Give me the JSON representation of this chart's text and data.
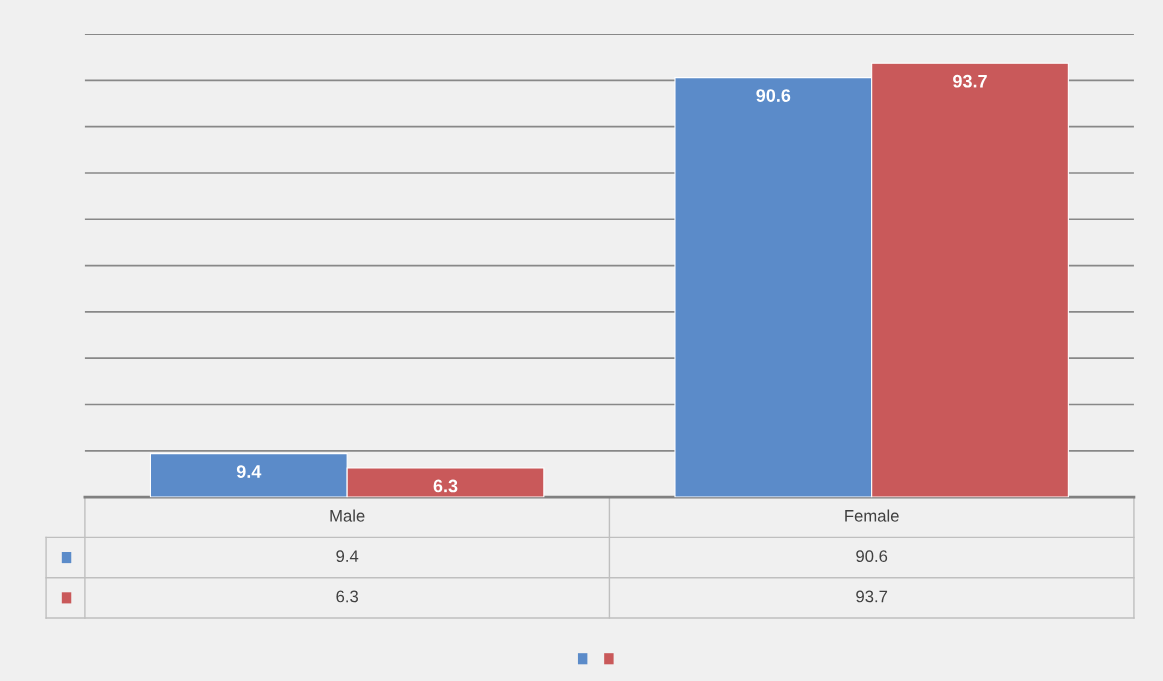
{
  "chart_data": {
    "type": "bar",
    "categories": [
      "Male",
      "Female"
    ],
    "series": [
      {
        "color": "#5b8bc9",
        "values": [
          9.4,
          90.6
        ],
        "value_labels": [
          "9.4",
          "90.6"
        ]
      },
      {
        "color": "#c9595a",
        "values": [
          6.3,
          93.7
        ],
        "value_labels": [
          "6.3",
          "93.7"
        ]
      }
    ],
    "ylim": [
      0,
      100
    ],
    "yticks": [
      {
        "value": 0,
        "label": null
      },
      {
        "value": 10,
        "label": null
      },
      {
        "value": 20,
        "label": null
      },
      {
        "value": 30,
        "label": null
      },
      {
        "value": 40,
        "label": null
      },
      {
        "value": 50,
        "label": null
      },
      {
        "value": 60,
        "label": null
      },
      {
        "value": 70,
        "label": null
      },
      {
        "value": 80,
        "label": null
      },
      {
        "value": 90,
        "label": null
      },
      {
        "value": 100,
        "label": null
      }
    ],
    "grid": "y",
    "tick_labels": "x",
    "annotations": [
      "9.4",
      "90.6",
      "6.3",
      "93.7"
    ]
  }
}
